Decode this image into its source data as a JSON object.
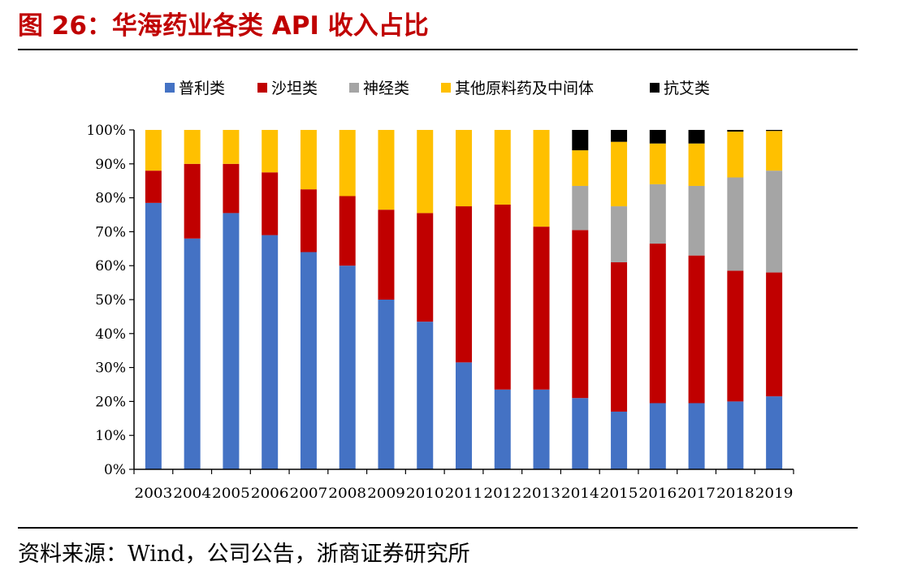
{
  "figure": {
    "title": "图 26：华海药业各类 API 收入占比",
    "source": "资料来源：Wind，公司公告，浙商证券研究所"
  },
  "chart_data": {
    "type": "bar",
    "stacked": true,
    "title": "",
    "xlabel": "",
    "ylabel": "",
    "ylim": [
      0,
      100
    ],
    "y_unit": "%",
    "y_ticks": [
      "0%",
      "10%",
      "20%",
      "30%",
      "40%",
      "50%",
      "60%",
      "70%",
      "80%",
      "90%",
      "100%"
    ],
    "legend_position": "top",
    "grid": false,
    "categories": [
      "2003",
      "2004",
      "2005",
      "2006",
      "2007",
      "2008",
      "2009",
      "2010",
      "2011",
      "2012",
      "2013",
      "2014",
      "2015",
      "2016",
      "2017",
      "2018",
      "2019"
    ],
    "series": [
      {
        "name": "普利类",
        "color": "#4472c4",
        "values": [
          78.5,
          68.0,
          75.5,
          69.0,
          64.0,
          60.0,
          50.0,
          43.5,
          31.5,
          23.5,
          23.5,
          21.0,
          17.0,
          19.5,
          19.5,
          20.0,
          21.5
        ]
      },
      {
        "name": "沙坦类",
        "color": "#c00000",
        "values": [
          9.5,
          22.0,
          14.5,
          18.5,
          18.5,
          20.5,
          26.5,
          32.0,
          46.0,
          54.5,
          48.0,
          49.5,
          44.0,
          47.0,
          43.5,
          38.5,
          36.5
        ]
      },
      {
        "name": "神经类",
        "color": "#a5a5a5",
        "values": [
          0,
          0,
          0,
          0,
          0,
          0,
          0,
          0,
          0,
          0,
          0,
          13.0,
          16.5,
          17.5,
          20.5,
          27.5,
          30.0
        ]
      },
      {
        "name": "其他原料药及中间体",
        "color": "#ffc000",
        "values": [
          12.0,
          10.0,
          10.0,
          12.5,
          17.5,
          19.5,
          23.5,
          24.5,
          22.5,
          22.0,
          28.5,
          10.5,
          19.0,
          12.0,
          12.5,
          13.5,
          11.7
        ]
      },
      {
        "name": "抗艾类",
        "color": "#000000",
        "values": [
          0,
          0,
          0,
          0,
          0,
          0,
          0,
          0,
          0,
          0,
          0,
          6.0,
          3.5,
          4.0,
          4.0,
          0.5,
          0.3
        ]
      }
    ]
  }
}
